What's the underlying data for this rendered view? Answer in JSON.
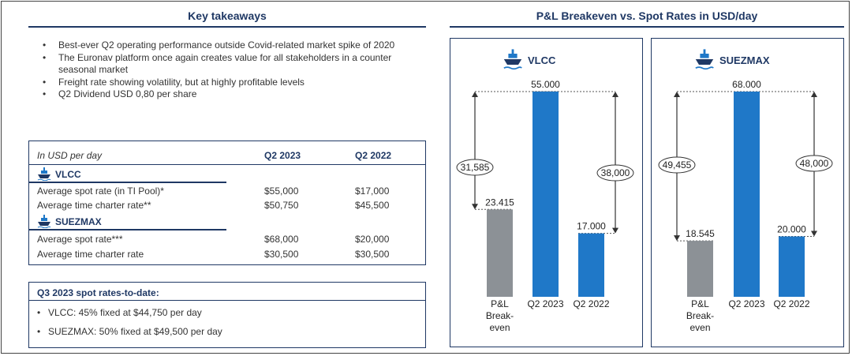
{
  "left": {
    "title": "Key takeaways",
    "bullets": [
      "Best-ever Q2 operating performance outside Covid-related market spike of 2020",
      "The Euronav platform once again creates value for all stakeholders in a counter seasonal market",
      "Freight rate showing volatility, but at highly profitable levels",
      "Q2 Dividend USD 0,80 per share"
    ],
    "table": {
      "unit_label": "In USD per day",
      "col1": "Q2 2023",
      "col2": "Q2 2022",
      "sections": [
        {
          "name": "VLCC",
          "rows": [
            {
              "label": "Average spot rate (in TI Pool)*",
              "q2_2023": "$55,000",
              "q2_2022": "$17,000"
            },
            {
              "label": "Average time charter rate**",
              "q2_2023": "$50,750",
              "q2_2022": "$45,500"
            }
          ]
        },
        {
          "name": "SUEZMAX",
          "rows": [
            {
              "label": "Average spot rate***",
              "q2_2023": "$68,000",
              "q2_2022": "$20,000"
            },
            {
              "label": "Average time charter rate",
              "q2_2023": "$30,500",
              "q2_2022": "$30,500"
            }
          ]
        }
      ]
    },
    "q3": {
      "title": "Q3 2023 spot rates-to-date:",
      "items": [
        "VLCC: 45% fixed at $44,750 per day",
        "SUEZMAX: 50% fixed at $49,500 per day"
      ]
    }
  },
  "right": {
    "title": "P&L Breakeven vs. Spot Rates in USD/day"
  },
  "colors": {
    "navy": "#1f3864",
    "grey_bar": "#8c9196",
    "blue_bar": "#1f78c8"
  },
  "chart_data": [
    {
      "type": "bar",
      "title": "VLCC",
      "categories": [
        "P&L Break-even",
        "Q2 2023",
        "Q2 2022"
      ],
      "category_lines": [
        [
          "P&L",
          "Break-",
          "even"
        ],
        [
          "Q2 2023"
        ],
        [
          "Q2 2022"
        ]
      ],
      "values": [
        23415,
        55000,
        17000
      ],
      "value_labels": [
        "23.415",
        "55.000",
        "17.000"
      ],
      "bar_colors": [
        "grey",
        "blue",
        "blue"
      ],
      "ylim": [
        0,
        55000
      ],
      "annotations": [
        {
          "label": "31,585",
          "from": 23415,
          "to": 55000,
          "side": "left"
        },
        {
          "label": "38,000",
          "from": 17000,
          "to": 55000,
          "side": "right"
        }
      ]
    },
    {
      "type": "bar",
      "title": "SUEZMAX",
      "categories": [
        "P&L Break-even",
        "Q2 2023",
        "Q2 2022"
      ],
      "category_lines": [
        [
          "P&L",
          "Break-",
          "even"
        ],
        [
          "Q2 2023"
        ],
        [
          "Q2 2022"
        ]
      ],
      "values": [
        18545,
        68000,
        20000
      ],
      "value_labels": [
        "18.545",
        "68.000",
        "20.000"
      ],
      "bar_colors": [
        "grey",
        "blue",
        "blue"
      ],
      "ylim": [
        0,
        68000
      ],
      "annotations": [
        {
          "label": "49,455",
          "from": 18545,
          "to": 68000,
          "side": "left"
        },
        {
          "label": "48,000",
          "from": 20000,
          "to": 68000,
          "side": "right"
        }
      ]
    }
  ]
}
